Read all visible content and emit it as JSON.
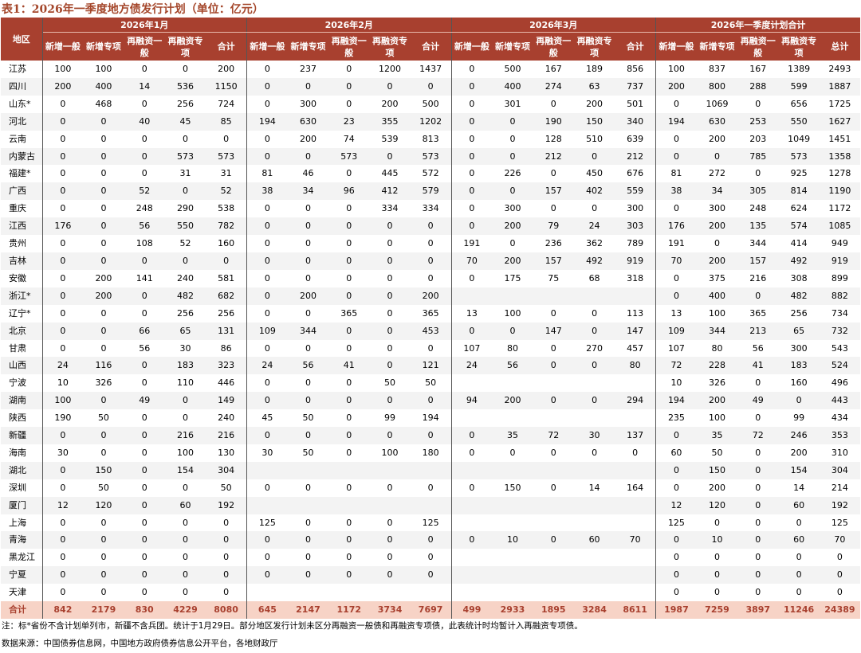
{
  "title": "表1：2026年一季度地方债发行计划（单位：亿元）",
  "header": {
    "region": "地区",
    "groups": [
      "2026年1月",
      "2026年2月",
      "2026年3月",
      "2026年一季度计划合计"
    ],
    "sub": [
      [
        "新增一般",
        "新增专项",
        "再融资一般",
        "再融资专项",
        "合计"
      ],
      [
        "新增一般",
        "新增专项",
        "再融资一般",
        "再融资专项",
        "合计"
      ],
      [
        "新增一般",
        "新增专项",
        "再融资一般",
        "再融资专项",
        "合计"
      ],
      [
        "新增一般",
        "新增专项",
        "再融资一般",
        "再融资专项",
        "总计"
      ]
    ]
  },
  "rows": [
    {
      "region": "江苏",
      "v": [
        "100",
        "100",
        "0",
        "0",
        "200",
        "0",
        "237",
        "0",
        "1200",
        "1437",
        "0",
        "500",
        "167",
        "189",
        "856",
        "100",
        "837",
        "167",
        "1389",
        "2493"
      ]
    },
    {
      "region": "四川",
      "v": [
        "200",
        "400",
        "14",
        "536",
        "1150",
        "0",
        "0",
        "0",
        "0",
        "0",
        "0",
        "400",
        "274",
        "63",
        "737",
        "200",
        "800",
        "288",
        "599",
        "1887"
      ]
    },
    {
      "region": "山东*",
      "v": [
        "0",
        "468",
        "0",
        "256",
        "724",
        "0",
        "300",
        "0",
        "200",
        "500",
        "0",
        "301",
        "0",
        "200",
        "501",
        "0",
        "1069",
        "0",
        "656",
        "1725"
      ]
    },
    {
      "region": "河北",
      "v": [
        "0",
        "0",
        "40",
        "45",
        "85",
        "194",
        "630",
        "23",
        "355",
        "1202",
        "0",
        "0",
        "190",
        "150",
        "340",
        "194",
        "630",
        "253",
        "550",
        "1627"
      ]
    },
    {
      "region": "云南",
      "v": [
        "0",
        "0",
        "0",
        "0",
        "0",
        "0",
        "200",
        "74",
        "539",
        "813",
        "0",
        "0",
        "128",
        "510",
        "639",
        "0",
        "200",
        "203",
        "1049",
        "1451"
      ]
    },
    {
      "region": "内蒙古",
      "v": [
        "0",
        "0",
        "0",
        "573",
        "573",
        "0",
        "0",
        "573",
        "0",
        "573",
        "0",
        "0",
        "212",
        "0",
        "212",
        "0",
        "0",
        "785",
        "573",
        "1358"
      ]
    },
    {
      "region": "福建*",
      "v": [
        "0",
        "0",
        "0",
        "31",
        "31",
        "81",
        "46",
        "0",
        "445",
        "572",
        "0",
        "226",
        "0",
        "450",
        "676",
        "81",
        "272",
        "0",
        "925",
        "1278"
      ]
    },
    {
      "region": "广西",
      "v": [
        "0",
        "0",
        "52",
        "0",
        "52",
        "38",
        "34",
        "96",
        "412",
        "579",
        "0",
        "0",
        "157",
        "402",
        "559",
        "38",
        "34",
        "305",
        "814",
        "1190"
      ]
    },
    {
      "region": "重庆",
      "v": [
        "0",
        "0",
        "248",
        "290",
        "538",
        "0",
        "0",
        "0",
        "334",
        "334",
        "0",
        "300",
        "0",
        "0",
        "300",
        "0",
        "300",
        "248",
        "624",
        "1172"
      ]
    },
    {
      "region": "江西",
      "v": [
        "176",
        "0",
        "56",
        "550",
        "782",
        "0",
        "0",
        "0",
        "0",
        "0",
        "0",
        "200",
        "79",
        "24",
        "303",
        "176",
        "200",
        "135",
        "574",
        "1085"
      ]
    },
    {
      "region": "贵州",
      "v": [
        "0",
        "0",
        "108",
        "52",
        "160",
        "0",
        "0",
        "0",
        "0",
        "0",
        "191",
        "0",
        "236",
        "362",
        "789",
        "191",
        "0",
        "344",
        "414",
        "949"
      ]
    },
    {
      "region": "吉林",
      "v": [
        "0",
        "0",
        "0",
        "0",
        "0",
        "0",
        "0",
        "0",
        "0",
        "0",
        "70",
        "200",
        "157",
        "492",
        "919",
        "70",
        "200",
        "157",
        "492",
        "919"
      ]
    },
    {
      "region": "安徽",
      "v": [
        "0",
        "200",
        "141",
        "240",
        "581",
        "0",
        "0",
        "0",
        "0",
        "0",
        "0",
        "175",
        "75",
        "68",
        "318",
        "0",
        "375",
        "216",
        "308",
        "899"
      ]
    },
    {
      "region": "浙江*",
      "v": [
        "0",
        "200",
        "0",
        "482",
        "682",
        "0",
        "200",
        "0",
        "0",
        "200",
        "",
        "",
        "",
        "",
        "",
        "0",
        "400",
        "0",
        "482",
        "882"
      ]
    },
    {
      "region": "辽宁*",
      "v": [
        "0",
        "0",
        "0",
        "256",
        "256",
        "0",
        "0",
        "365",
        "0",
        "365",
        "13",
        "100",
        "0",
        "0",
        "113",
        "13",
        "100",
        "365",
        "256",
        "734"
      ]
    },
    {
      "region": "北京",
      "v": [
        "0",
        "0",
        "66",
        "65",
        "131",
        "109",
        "344",
        "0",
        "0",
        "453",
        "0",
        "0",
        "147",
        "0",
        "147",
        "109",
        "344",
        "213",
        "65",
        "732"
      ]
    },
    {
      "region": "甘肃",
      "v": [
        "0",
        "0",
        "56",
        "30",
        "86",
        "0",
        "0",
        "0",
        "0",
        "0",
        "107",
        "80",
        "0",
        "270",
        "457",
        "107",
        "80",
        "56",
        "300",
        "543"
      ]
    },
    {
      "region": "山西",
      "v": [
        "24",
        "116",
        "0",
        "183",
        "323",
        "24",
        "56",
        "41",
        "0",
        "121",
        "24",
        "56",
        "0",
        "0",
        "80",
        "72",
        "228",
        "41",
        "183",
        "524"
      ]
    },
    {
      "region": "宁波",
      "v": [
        "10",
        "326",
        "0",
        "110",
        "446",
        "0",
        "0",
        "0",
        "50",
        "50",
        "",
        "",
        "",
        "",
        "",
        "10",
        "326",
        "0",
        "160",
        "496"
      ]
    },
    {
      "region": "湖南",
      "v": [
        "100",
        "0",
        "49",
        "0",
        "149",
        "0",
        "0",
        "0",
        "0",
        "0",
        "94",
        "200",
        "0",
        "0",
        "294",
        "194",
        "200",
        "49",
        "0",
        "443"
      ]
    },
    {
      "region": "陕西",
      "v": [
        "190",
        "50",
        "0",
        "0",
        "240",
        "45",
        "50",
        "0",
        "99",
        "194",
        "",
        "",
        "",
        "",
        "",
        "235",
        "100",
        "0",
        "99",
        "434"
      ]
    },
    {
      "region": "新疆",
      "v": [
        "0",
        "0",
        "0",
        "216",
        "216",
        "0",
        "0",
        "0",
        "0",
        "0",
        "0",
        "35",
        "72",
        "30",
        "137",
        "0",
        "35",
        "72",
        "246",
        "353"
      ]
    },
    {
      "region": "海南",
      "v": [
        "30",
        "0",
        "0",
        "100",
        "130",
        "30",
        "50",
        "0",
        "100",
        "180",
        "0",
        "0",
        "0",
        "0",
        "0",
        "60",
        "50",
        "0",
        "200",
        "310"
      ]
    },
    {
      "region": "湖北",
      "v": [
        "0",
        "150",
        "0",
        "154",
        "304",
        "",
        "",
        "",
        "",
        "",
        "",
        "",
        "",
        "",
        "",
        "0",
        "150",
        "0",
        "154",
        "304"
      ]
    },
    {
      "region": "深圳",
      "v": [
        "0",
        "50",
        "0",
        "0",
        "50",
        "0",
        "0",
        "0",
        "0",
        "0",
        "0",
        "150",
        "0",
        "14",
        "164",
        "0",
        "200",
        "0",
        "14",
        "214"
      ]
    },
    {
      "region": "厦门",
      "v": [
        "12",
        "120",
        "0",
        "60",
        "192",
        "",
        "",
        "",
        "",
        "",
        "",
        "",
        "",
        "",
        "",
        "12",
        "120",
        "0",
        "60",
        "192"
      ]
    },
    {
      "region": "上海",
      "v": [
        "0",
        "0",
        "0",
        "0",
        "0",
        "125",
        "0",
        "0",
        "0",
        "125",
        "",
        "",
        "",
        "",
        "",
        "125",
        "0",
        "0",
        "0",
        "125"
      ]
    },
    {
      "region": "青海",
      "v": [
        "0",
        "0",
        "0",
        "0",
        "0",
        "0",
        "0",
        "0",
        "0",
        "0",
        "0",
        "10",
        "0",
        "60",
        "70",
        "0",
        "10",
        "0",
        "60",
        "70"
      ]
    },
    {
      "region": "黑龙江",
      "v": [
        "0",
        "0",
        "0",
        "0",
        "0",
        "0",
        "0",
        "0",
        "0",
        "0",
        "",
        "",
        "",
        "",
        "",
        "0",
        "0",
        "0",
        "0",
        "0"
      ]
    },
    {
      "region": "宁夏",
      "v": [
        "0",
        "0",
        "0",
        "0",
        "0",
        "0",
        "0",
        "0",
        "0",
        "0",
        "",
        "",
        "",
        "",
        "",
        "0",
        "0",
        "0",
        "0",
        "0"
      ]
    },
    {
      "region": "天津",
      "v": [
        "0",
        "0",
        "0",
        "0",
        "0",
        "",
        "",
        "",
        "",
        "",
        "",
        "",
        "",
        "",
        "",
        "0",
        "0",
        "0",
        "0",
        "0"
      ]
    }
  ],
  "total": {
    "region": "合计",
    "v": [
      "842",
      "2179",
      "830",
      "4229",
      "8080",
      "645",
      "2147",
      "1172",
      "3734",
      "7697",
      "499",
      "2933",
      "1895",
      "3284",
      "8611",
      "1987",
      "7259",
      "3897",
      "11246",
      "24389"
    ]
  },
  "note": "注：标*省份不含计划单列市，新疆不含兵团。统计于1月29日。部分地区发行计划未区分再融资一般债和再融资专项债，此表统计时均暂计入再融资专项债。",
  "source": "数据来源：中国债券信息网，中国地方政府债券信息公开平台，各地财政厅"
}
